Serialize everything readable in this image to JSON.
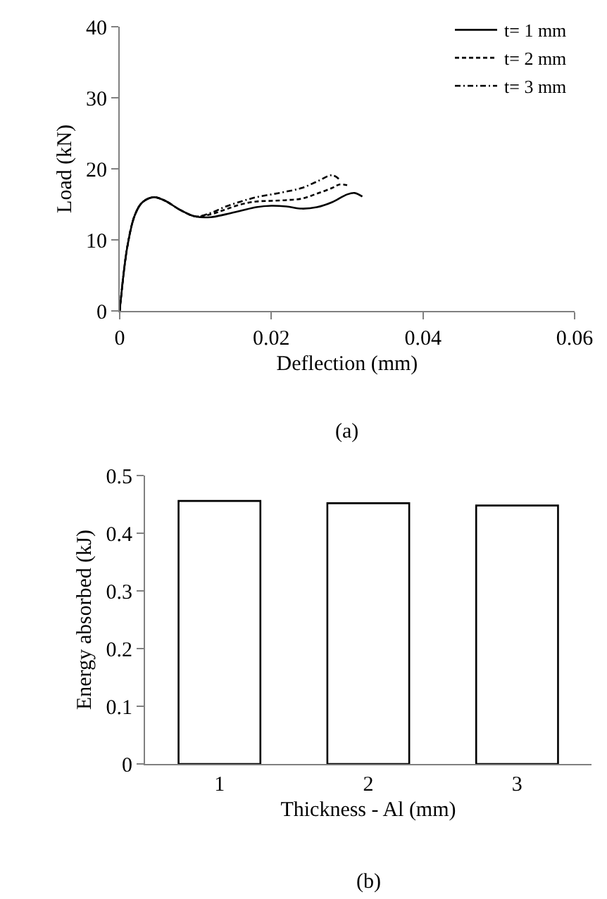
{
  "chart_data": [
    {
      "type": "line",
      "xlabel": "Deflection (mm)",
      "ylabel": "Load (kN)",
      "annotations": [
        "(a)"
      ],
      "xlim": [
        0,
        0.06
      ],
      "xticks": [
        0,
        0.02,
        0.04,
        0.06
      ],
      "ylim": [
        0,
        40
      ],
      "yticks": [
        0,
        10,
        20,
        30,
        40
      ],
      "legend": "top right",
      "marker": "none",
      "series": [
        {
          "name": "t= 1 mm",
          "color": "#000000",
          "line_style": "solid",
          "x": [
            0,
            0.001,
            0.002,
            0.003,
            0.0045,
            0.006,
            0.008,
            0.01,
            0.012,
            0.014,
            0.016,
            0.018,
            0.02,
            0.022,
            0.024,
            0.026,
            0.028,
            0.03,
            0.031,
            0.032
          ],
          "values": [
            0,
            9,
            13.5,
            15.3,
            16,
            15.5,
            14.2,
            13.3,
            13.2,
            13.6,
            14.1,
            14.6,
            14.8,
            14.7,
            14.4,
            14.6,
            15.3,
            16.4,
            16.6,
            16.1
          ]
        },
        {
          "name": "t= 2 mm",
          "color": "#000000",
          "line_style": "dashed",
          "x": [
            0,
            0.001,
            0.002,
            0.003,
            0.0045,
            0.006,
            0.008,
            0.01,
            0.012,
            0.014,
            0.016,
            0.018,
            0.02,
            0.022,
            0.024,
            0.026,
            0.028,
            0.029,
            0.03
          ],
          "values": [
            0,
            9,
            13.5,
            15.3,
            16,
            15.5,
            14.2,
            13.3,
            13.6,
            14.3,
            15,
            15.4,
            15.5,
            15.6,
            15.8,
            16.5,
            17.3,
            17.8,
            17.7
          ]
        },
        {
          "name": "t= 3 mm",
          "color": "#000000",
          "line_style": "dashdot",
          "x": [
            0,
            0.001,
            0.002,
            0.003,
            0.0045,
            0.006,
            0.008,
            0.01,
            0.012,
            0.014,
            0.016,
            0.018,
            0.02,
            0.022,
            0.024,
            0.026,
            0.028,
            0.029
          ],
          "values": [
            0,
            9,
            13.5,
            15.3,
            16,
            15.5,
            14.2,
            13.3,
            13.8,
            14.7,
            15.4,
            16.0,
            16.4,
            16.8,
            17.3,
            18.2,
            19.1,
            18.5
          ]
        }
      ]
    },
    {
      "type": "bar",
      "xlabel": "Thickness - Al (mm)",
      "ylabel": "Energy absorbed (kJ)",
      "annotations": [
        "(b)"
      ],
      "categories": [
        "1",
        "2",
        "3"
      ],
      "values": [
        0.456,
        0.452,
        0.448
      ],
      "color": "#ffffff",
      "ylim": [
        0,
        0.5
      ],
      "yticks": [
        0,
        0.1,
        0.2,
        0.3,
        0.4,
        0.5
      ]
    }
  ]
}
